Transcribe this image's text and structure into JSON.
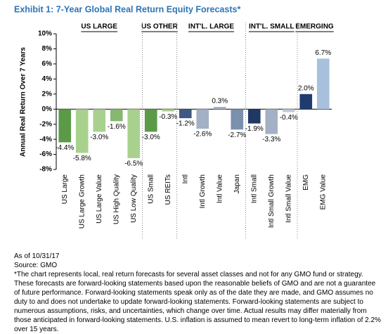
{
  "chart_data": {
    "type": "bar",
    "title": "Exhibit 1: 7-Year Global Real Return Equity Forecasts*",
    "y_label": "Annual Real Return Over 7 Years",
    "categories": [
      "US Large",
      "US Large Growth",
      "US Large Value",
      "US High Quality",
      "US Low Quality",
      "US Small",
      "US REITs",
      "Intl",
      "Intl Growth",
      "Intl Value",
      "Japan",
      "Intl Small",
      "Intl Small Growth",
      "Intl Small Value",
      "EMG",
      "EMG Value"
    ],
    "values": [
      -4.4,
      -5.8,
      -3.0,
      -1.6,
      -6.5,
      -3.0,
      -0.3,
      -1.2,
      -2.6,
      0.3,
      -2.7,
      -1.9,
      -3.3,
      -0.4,
      2.0,
      6.7
    ],
    "value_labels": [
      "-4.4%",
      "-5.8%",
      "-3.0%",
      "-1.6%",
      "-6.5%",
      "-3.0%",
      "-0.3%",
      "-1.2%",
      "-2.6%",
      "0.3%",
      "-2.7%",
      "-1.9%",
      "-3.3%",
      "-0.4%",
      "2.0%",
      "6.7%"
    ],
    "colors": [
      "#5b9a47",
      "#a9d18e",
      "#a9d18e",
      "#86b870",
      "#a9d18e",
      "#5b9a47",
      "#a9d18e",
      "#3e5a82",
      "#a3b1c6",
      "#a3b1c6",
      "#7a90ad",
      "#1f3864",
      "#a3b1c6",
      "#c0cad8",
      "#1f3b70",
      "#a9c0dc"
    ],
    "groups": [
      {
        "label": "US LARGE",
        "start": 0,
        "end": 4
      },
      {
        "label": "US OTHER",
        "start": 5,
        "end": 6
      },
      {
        "label": "INT'L. LARGE",
        "start": 7,
        "end": 10
      },
      {
        "label": "INT'L. SMALL",
        "start": 11,
        "end": 13
      },
      {
        "label": "EMERGING",
        "start": 14,
        "end": 15
      }
    ],
    "ylim": [
      -8,
      10
    ],
    "yticks": [
      {
        "value": -8,
        "label": "-8%"
      },
      {
        "value": -6,
        "label": "-6%"
      },
      {
        "value": -4,
        "label": "-4%"
      },
      {
        "value": -2,
        "label": "-2%"
      },
      {
        "value": 0,
        "label": "0%"
      },
      {
        "value": 2,
        "label": "2%"
      },
      {
        "value": 4,
        "label": "4%"
      },
      {
        "value": 6,
        "label": "6%"
      },
      {
        "value": 8,
        "label": "8%"
      },
      {
        "value": 10,
        "label": "10%"
      }
    ]
  },
  "footer": {
    "date": "As of 10/31/17",
    "source": "Source: GMO",
    "note": "*The chart represents local, real return forecasts for several asset classes and not for any GMO fund or strategy. These forecasts are forward-looking statements based upon the reasonable beliefs of GMO and are not a guarantee of future performance. Forward-looking statements speak only as of the date they are made, and GMO assumes no duty to and does not undertake to update forward-looking statements. Forward-looking statements are subject to numerous assumptions, risks, and uncertainties, which change over time. Actual results may differ materially from those anticipated in forward-looking statements. U.S. inflation is assumed to mean revert to long-term inflation of 2.2% over 15 years."
  }
}
